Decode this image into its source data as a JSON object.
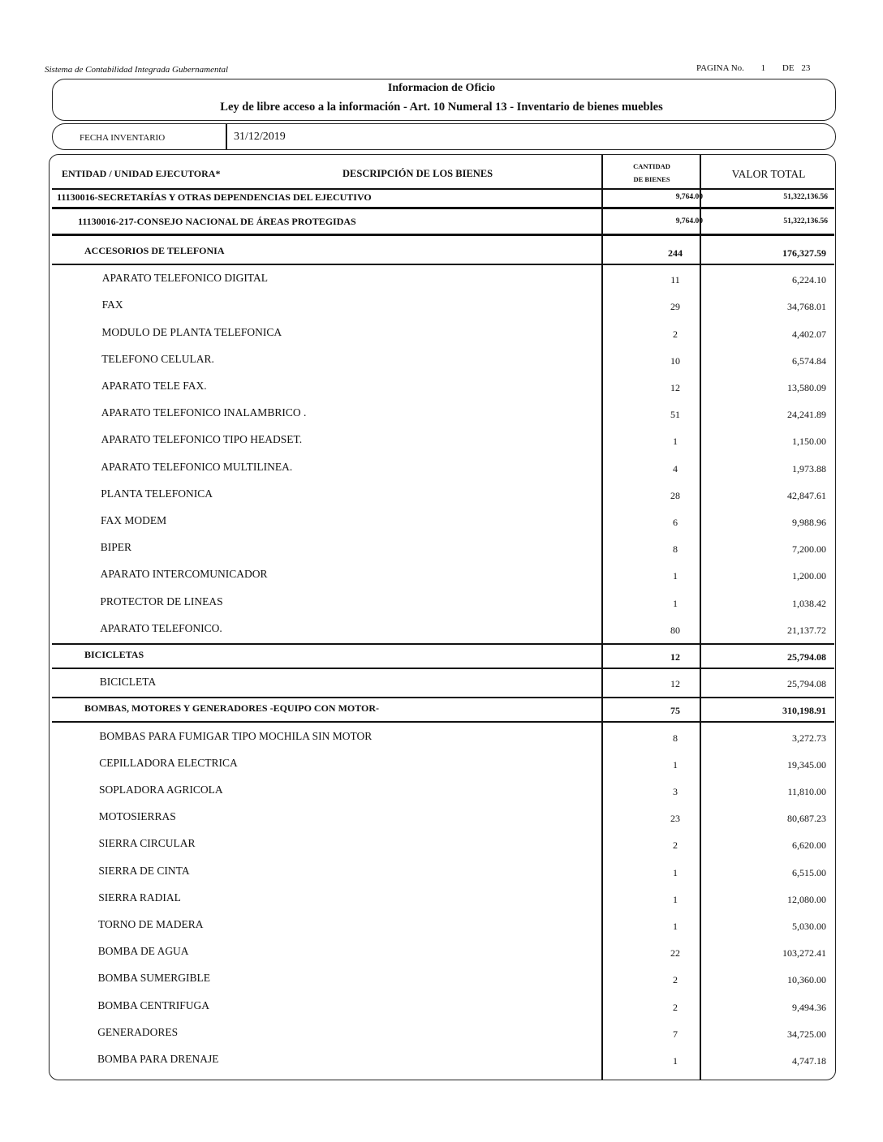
{
  "header": {
    "system_name": "Sistema de Contabilidad Integrada Gubernamental",
    "page_label": "PAGINA No.",
    "page_number": "1",
    "page_of_label": "DE",
    "page_total": "23",
    "title": "Informacion de Oficio",
    "subtitle": "Ley de libre acceso a la información - Art. 10 Numeral 13 - Inventario de bienes muebles",
    "fecha_label": "FECHA INVENTARIO",
    "fecha_value": "31/12/2019"
  },
  "table": {
    "col_entity": "ENTIDAD / UNIDAD EJECUTORA*",
    "col_desc": "DESCRIPCIÓN DE LOS BIENES",
    "col_qty_1": "CANTIDAD",
    "col_qty_2": "DE BIENES",
    "col_total": "VALOR TOTAL",
    "entity": {
      "name": "11130016-SECRETARÍAS Y OTRAS DEPENDENCIAS DEL EJECUTIVO",
      "qty": "9,764.00",
      "total": "51,322,136.56"
    },
    "unit": {
      "name": "11130016-217-CONSEJO NACIONAL DE ÁREAS PROTEGIDAS",
      "qty": "9,764.00",
      "total": "51,322,136.56"
    },
    "rows": [
      {
        "type": "cat",
        "desc": "ACCESORIOS DE TELEFONIA",
        "qty": "244",
        "total": "176,327.59"
      },
      {
        "type": "item",
        "desc": "APARATO TELEFONICO DIGITAL",
        "qty": "11",
        "total": "6,224.10"
      },
      {
        "type": "item",
        "desc": "FAX",
        "qty": "29",
        "total": "34,768.01"
      },
      {
        "type": "item",
        "desc": "MODULO DE PLANTA TELEFONICA",
        "qty": "2",
        "total": "4,402.07"
      },
      {
        "type": "item",
        "desc": "TELEFONO CELULAR.",
        "qty": "10",
        "total": "6,574.84"
      },
      {
        "type": "item",
        "desc": "APARATO TELE FAX.",
        "qty": "12",
        "total": "13,580.09"
      },
      {
        "type": "item",
        "desc": "APARATO TELEFONICO INALAMBRICO .",
        "qty": "51",
        "total": "24,241.89"
      },
      {
        "type": "item",
        "desc": "APARATO TELEFONICO TIPO HEADSET.",
        "qty": "1",
        "total": "1,150.00"
      },
      {
        "type": "item",
        "desc": "APARATO TELEFONICO MULTILINEA.",
        "qty": "4",
        "total": "1,973.88"
      },
      {
        "type": "item",
        "desc": "PLANTA TELEFONICA",
        "qty": "28",
        "total": "42,847.61"
      },
      {
        "type": "item",
        "desc": "FAX MODEM",
        "qty": "6",
        "total": "9,988.96"
      },
      {
        "type": "item",
        "desc": "BIPER",
        "qty": "8",
        "total": "7,200.00"
      },
      {
        "type": "item",
        "desc": "APARATO INTERCOMUNICADOR",
        "qty": "1",
        "total": "1,200.00"
      },
      {
        "type": "item",
        "desc": "PROTECTOR DE LINEAS",
        "qty": "1",
        "total": "1,038.42"
      },
      {
        "type": "item",
        "desc": "APARATO TELEFONICO.",
        "qty": "80",
        "total": "21,137.72"
      },
      {
        "type": "cat",
        "desc": "BICICLETAS",
        "qty": "12",
        "total": "25,794.08"
      },
      {
        "type": "item",
        "desc": "BICICLETA",
        "qty": "12",
        "total": "25,794.08"
      },
      {
        "type": "cat",
        "desc": "BOMBAS, MOTORES Y GENERADORES  -EQUIPO CON MOTOR-",
        "qty": "75",
        "total": "310,198.91"
      },
      {
        "type": "item",
        "desc": "BOMBAS PARA FUMIGAR TIPO MOCHILA SIN MOTOR",
        "qty": "8",
        "total": "3,272.73"
      },
      {
        "type": "item",
        "desc": "CEPILLADORA ELECTRICA",
        "qty": "1",
        "total": "19,345.00"
      },
      {
        "type": "item",
        "desc": "SOPLADORA AGRICOLA",
        "qty": "3",
        "total": "11,810.00"
      },
      {
        "type": "item",
        "desc": "MOTOSIERRAS",
        "qty": "23",
        "total": "80,687.23"
      },
      {
        "type": "item",
        "desc": "SIERRA CIRCULAR",
        "qty": "2",
        "total": "6,620.00"
      },
      {
        "type": "item",
        "desc": "SIERRA DE CINTA",
        "qty": "1",
        "total": "6,515.00"
      },
      {
        "type": "item",
        "desc": "SIERRA RADIAL",
        "qty": "1",
        "total": "12,080.00"
      },
      {
        "type": "item",
        "desc": "TORNO DE MADERA",
        "qty": "1",
        "total": "5,030.00"
      },
      {
        "type": "item",
        "desc": "BOMBA DE AGUA",
        "qty": "22",
        "total": "103,272.41"
      },
      {
        "type": "item",
        "desc": "BOMBA SUMERGIBLE",
        "qty": "2",
        "total": "10,360.00"
      },
      {
        "type": "item",
        "desc": "BOMBA CENTRIFUGA",
        "qty": "2",
        "total": "9,494.36"
      },
      {
        "type": "item",
        "desc": "GENERADORES",
        "qty": "7",
        "total": "34,725.00"
      },
      {
        "type": "item",
        "desc": "BOMBA PARA DRENAJE",
        "qty": "1",
        "total": "4,747.18"
      }
    ]
  }
}
